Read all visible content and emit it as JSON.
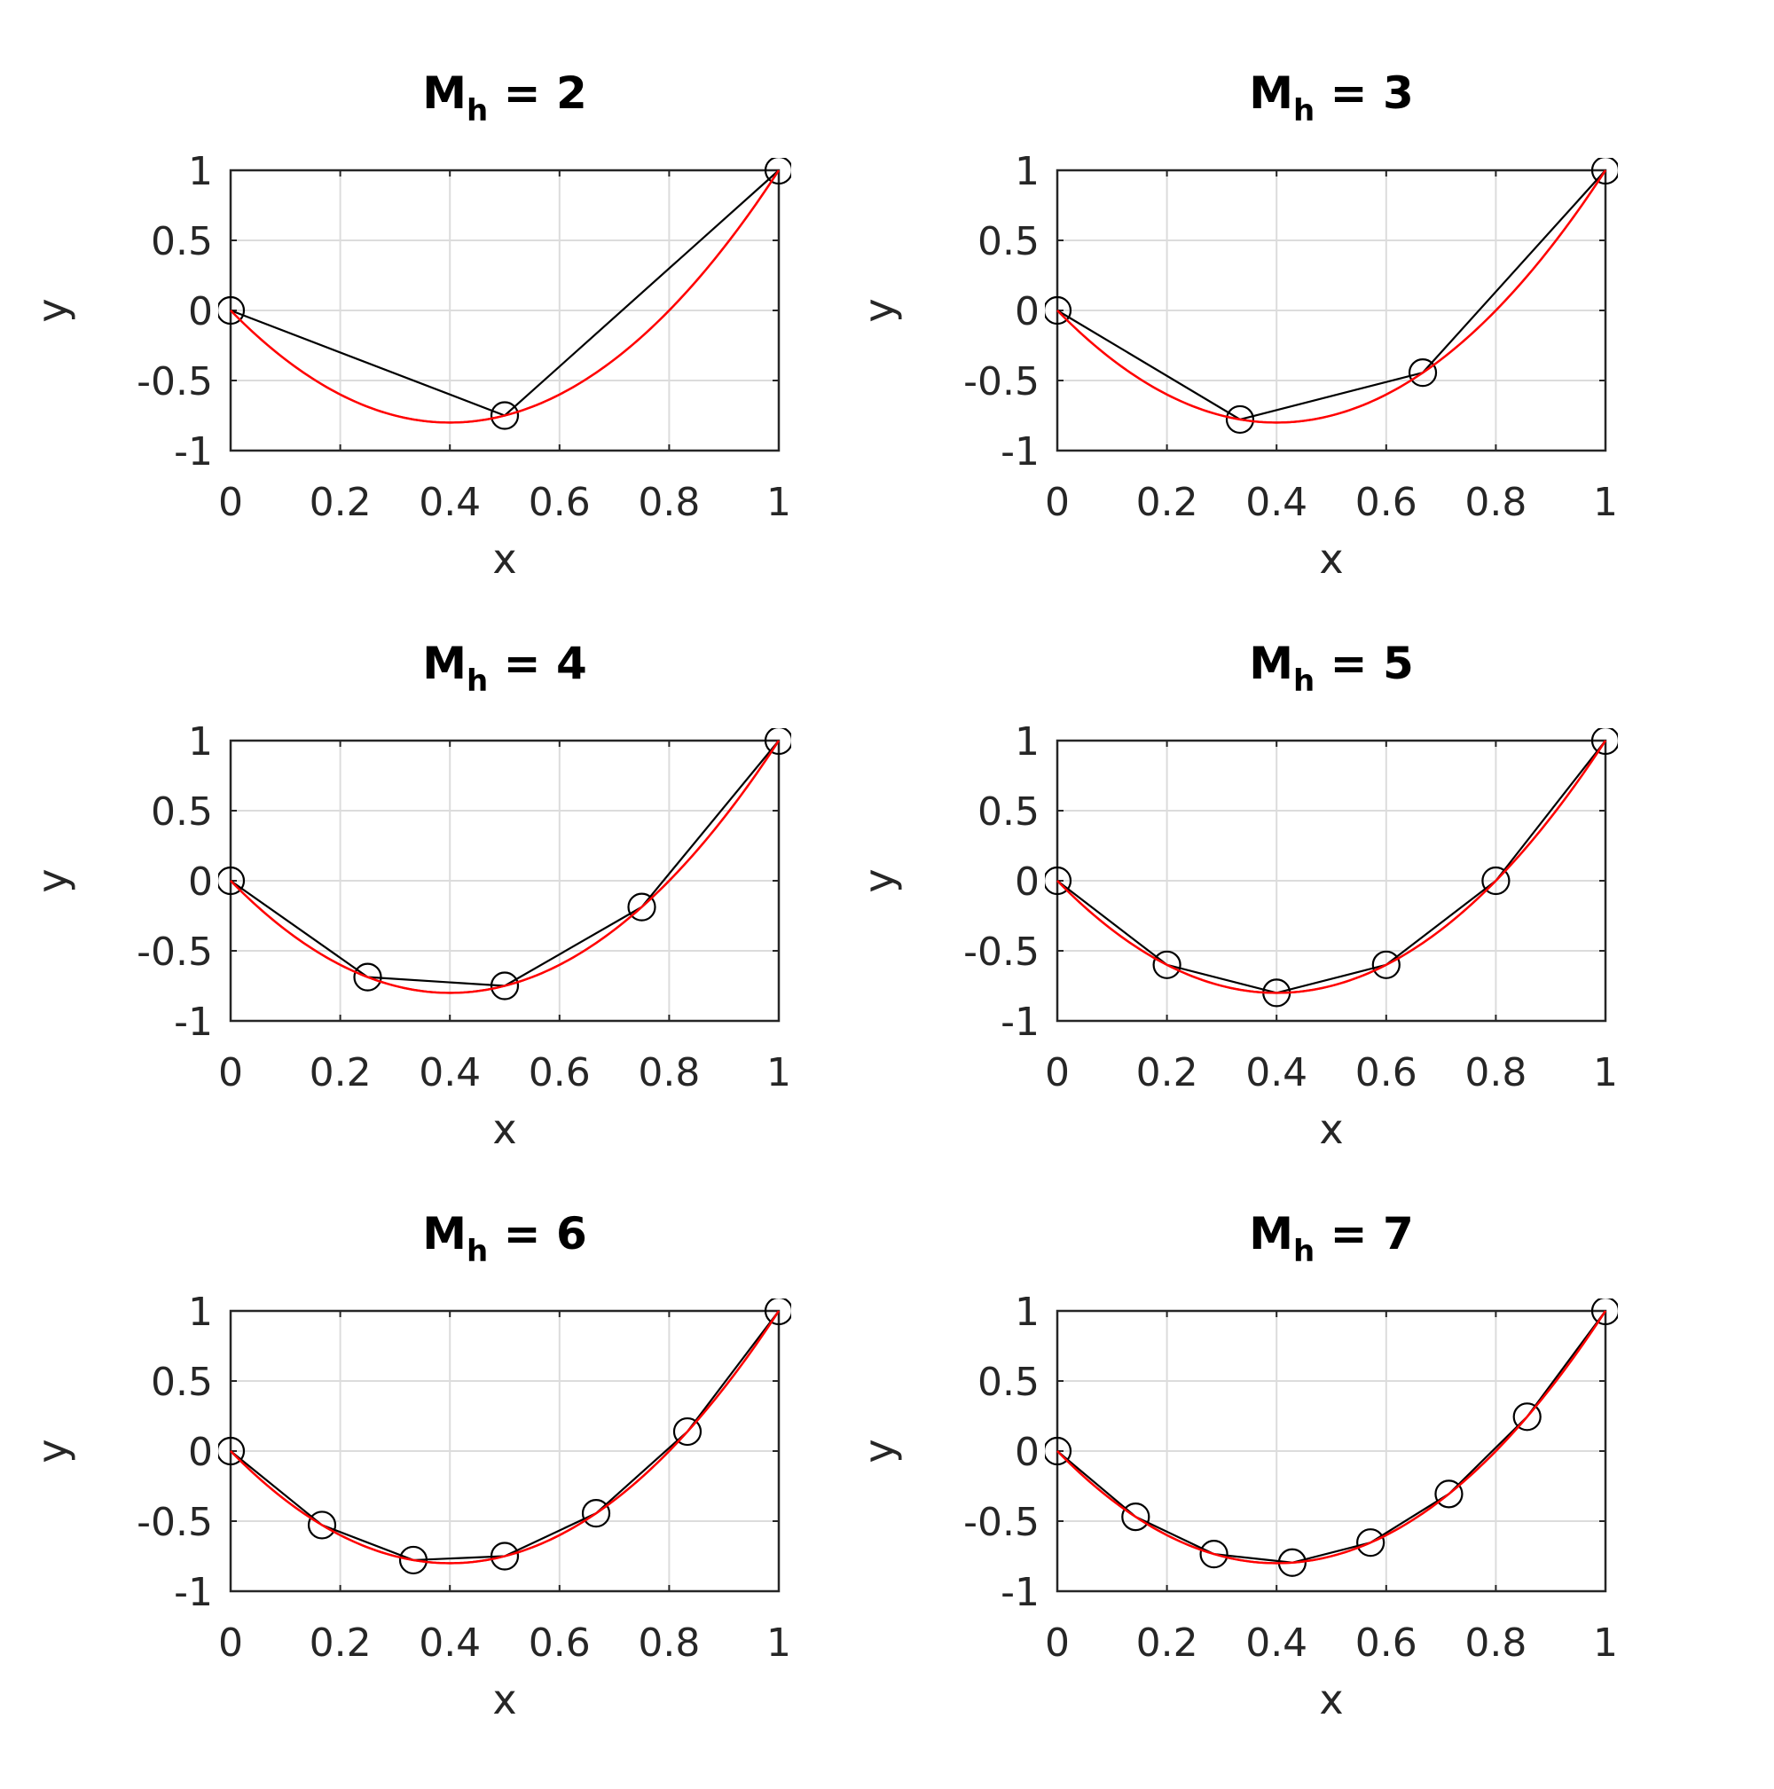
{
  "chart_data": [
    {
      "type": "line",
      "title": {
        "main": "M",
        "subscript": "h",
        "rest": " = 2"
      },
      "xlabel": "x",
      "ylabel": "y",
      "xlim": [
        0,
        1
      ],
      "ylim": [
        -1,
        1
      ],
      "xticks": [
        0,
        0.2,
        0.4,
        0.6,
        0.8,
        1
      ],
      "xtick_labels": [
        "0",
        "0.2",
        "0.4",
        "0.6",
        "0.8",
        "1"
      ],
      "yticks": [
        -1,
        -0.5,
        0,
        0.5,
        1
      ],
      "ytick_labels": [
        "-1",
        "-0.5",
        "0",
        "0.5",
        "1"
      ],
      "grid": true,
      "series": [
        {
          "style": "black-line-circle-markers",
          "color": "#000000",
          "x": [
            0,
            0.5,
            1
          ],
          "y": [
            0,
            -0.75,
            1
          ]
        },
        {
          "style": "smooth-curve",
          "color": "#ff0000",
          "function": "y = 5x^2 - 4x",
          "samples": 120
        }
      ]
    },
    {
      "type": "line",
      "title": {
        "main": "M",
        "subscript": "h",
        "rest": " = 3"
      },
      "xlabel": "x",
      "ylabel": "y",
      "xlim": [
        0,
        1
      ],
      "ylim": [
        -1,
        1
      ],
      "xticks": [
        0,
        0.2,
        0.4,
        0.6,
        0.8,
        1
      ],
      "xtick_labels": [
        "0",
        "0.2",
        "0.4",
        "0.6",
        "0.8",
        "1"
      ],
      "yticks": [
        -1,
        -0.5,
        0,
        0.5,
        1
      ],
      "ytick_labels": [
        "-1",
        "-0.5",
        "0",
        "0.5",
        "1"
      ],
      "grid": true,
      "series": [
        {
          "style": "black-line-circle-markers",
          "color": "#000000",
          "x": [
            0,
            0.3333,
            0.6667,
            1
          ],
          "y": [
            0,
            -0.778,
            -0.444,
            1
          ]
        },
        {
          "style": "smooth-curve",
          "color": "#ff0000",
          "function": "y = 5x^2 - 4x",
          "samples": 120
        }
      ]
    },
    {
      "type": "line",
      "title": {
        "main": "M",
        "subscript": "h",
        "rest": " = 4"
      },
      "xlabel": "x",
      "ylabel": "y",
      "xlim": [
        0,
        1
      ],
      "ylim": [
        -1,
        1
      ],
      "xticks": [
        0,
        0.2,
        0.4,
        0.6,
        0.8,
        1
      ],
      "xtick_labels": [
        "0",
        "0.2",
        "0.4",
        "0.6",
        "0.8",
        "1"
      ],
      "yticks": [
        -1,
        -0.5,
        0,
        0.5,
        1
      ],
      "ytick_labels": [
        "-1",
        "-0.5",
        "0",
        "0.5",
        "1"
      ],
      "grid": true,
      "series": [
        {
          "style": "black-line-circle-markers",
          "color": "#000000",
          "x": [
            0,
            0.25,
            0.5,
            0.75,
            1
          ],
          "y": [
            0,
            -0.6875,
            -0.75,
            -0.1875,
            1
          ]
        },
        {
          "style": "smooth-curve",
          "color": "#ff0000",
          "function": "y = 5x^2 - 4x",
          "samples": 120
        }
      ]
    },
    {
      "type": "line",
      "title": {
        "main": "M",
        "subscript": "h",
        "rest": " = 5"
      },
      "xlabel": "x",
      "ylabel": "y",
      "xlim": [
        0,
        1
      ],
      "ylim": [
        -1,
        1
      ],
      "xticks": [
        0,
        0.2,
        0.4,
        0.6,
        0.8,
        1
      ],
      "xtick_labels": [
        "0",
        "0.2",
        "0.4",
        "0.6",
        "0.8",
        "1"
      ],
      "yticks": [
        -1,
        -0.5,
        0,
        0.5,
        1
      ],
      "ytick_labels": [
        "-1",
        "-0.5",
        "0",
        "0.5",
        "1"
      ],
      "grid": true,
      "series": [
        {
          "style": "black-line-circle-markers",
          "color": "#000000",
          "x": [
            0,
            0.2,
            0.4,
            0.6,
            0.8,
            1
          ],
          "y": [
            0,
            -0.6,
            -0.8,
            -0.6,
            0,
            1
          ]
        },
        {
          "style": "smooth-curve",
          "color": "#ff0000",
          "function": "y = 5x^2 - 4x",
          "samples": 120
        }
      ]
    },
    {
      "type": "line",
      "title": {
        "main": "M",
        "subscript": "h",
        "rest": " = 6"
      },
      "xlabel": "x",
      "ylabel": "y",
      "xlim": [
        0,
        1
      ],
      "ylim": [
        -1,
        1
      ],
      "xticks": [
        0,
        0.2,
        0.4,
        0.6,
        0.8,
        1
      ],
      "xtick_labels": [
        "0",
        "0.2",
        "0.4",
        "0.6",
        "0.8",
        "1"
      ],
      "yticks": [
        -1,
        -0.5,
        0,
        0.5,
        1
      ],
      "ytick_labels": [
        "-1",
        "-0.5",
        "0",
        "0.5",
        "1"
      ],
      "grid": true,
      "series": [
        {
          "style": "black-line-circle-markers",
          "color": "#000000",
          "x": [
            0,
            0.1667,
            0.3333,
            0.5,
            0.6667,
            0.8333,
            1
          ],
          "y": [
            0,
            -0.528,
            -0.778,
            -0.75,
            -0.444,
            0.139,
            1
          ]
        },
        {
          "style": "smooth-curve",
          "color": "#ff0000",
          "function": "y = 5x^2 - 4x",
          "samples": 120
        }
      ]
    },
    {
      "type": "line",
      "title": {
        "main": "M",
        "subscript": "h",
        "rest": " = 7"
      },
      "xlabel": "x",
      "ylabel": "y",
      "xlim": [
        0,
        1
      ],
      "ylim": [
        -1,
        1
      ],
      "xticks": [
        0,
        0.2,
        0.4,
        0.6,
        0.8,
        1
      ],
      "xtick_labels": [
        "0",
        "0.2",
        "0.4",
        "0.6",
        "0.8",
        "1"
      ],
      "yticks": [
        -1,
        -0.5,
        0,
        0.5,
        1
      ],
      "ytick_labels": [
        "-1",
        "-0.5",
        "0",
        "0.5",
        "1"
      ],
      "grid": true,
      "series": [
        {
          "style": "black-line-circle-markers",
          "color": "#000000",
          "x": [
            0,
            0.1429,
            0.2857,
            0.4286,
            0.5714,
            0.7143,
            0.8571,
            1
          ],
          "y": [
            0,
            -0.469,
            -0.735,
            -0.796,
            -0.653,
            -0.306,
            0.245,
            1
          ]
        },
        {
          "style": "smooth-curve",
          "color": "#ff0000",
          "function": "y = 5x^2 - 4x",
          "samples": 120
        }
      ]
    }
  ],
  "colors": {
    "grid": "#dcdcdc",
    "axes": "#262626",
    "marker": "#000000",
    "exact": "#ff0000",
    "background": "#ffffff"
  }
}
